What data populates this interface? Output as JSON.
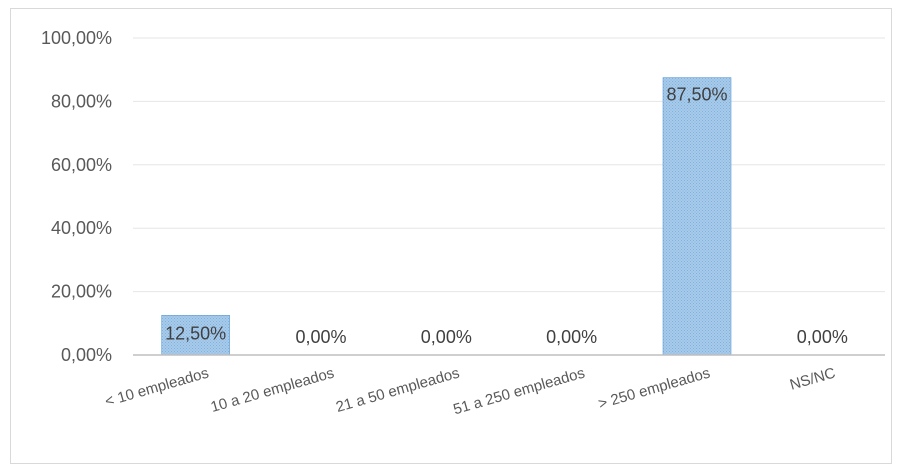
{
  "chart_data": {
    "type": "bar",
    "categories": [
      "< 10 empleados",
      "10 a 20 empleados",
      "21 a 50 empleados",
      "51 a 250 empleados",
      "> 250 empleados",
      "NS/NC"
    ],
    "values": [
      12.5,
      0,
      0,
      0,
      87.5,
      0
    ],
    "data_labels": [
      "12,50%",
      "0,00%",
      "0,00%",
      "0,00%",
      "87,50%",
      "0,00%"
    ],
    "yticks": [
      0,
      20,
      40,
      60,
      80,
      100
    ],
    "ytick_labels": [
      "0,00%",
      "20,00%",
      "40,00%",
      "60,00%",
      "80,00%",
      "100,00%"
    ],
    "ylim": [
      0,
      100
    ],
    "grid": true,
    "title": "",
    "xlabel": "",
    "ylabel": "",
    "colors": {
      "bar": "#9dc3e6",
      "bar_border": "#5b9bd5",
      "grid": "#e6e6e6",
      "axis": "#bfbfbf"
    }
  }
}
